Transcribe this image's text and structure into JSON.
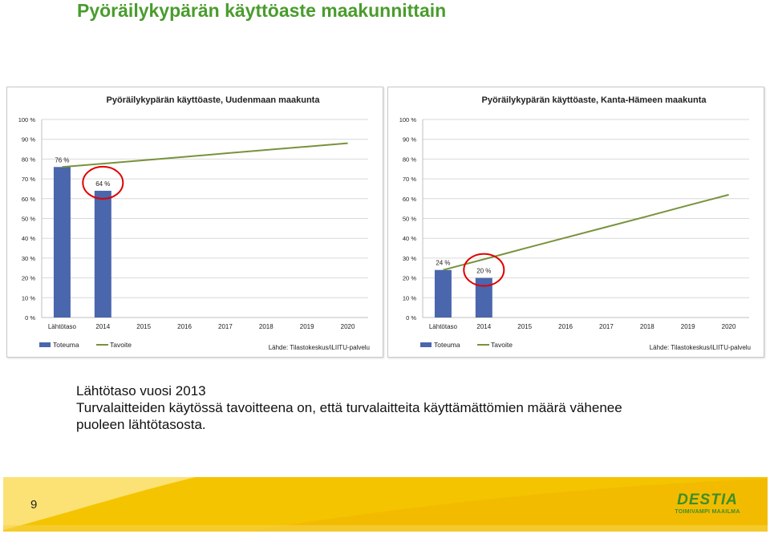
{
  "slide": {
    "title": "Pyöräilykypärän käyttöaste maakunnittain",
    "body_lines": [
      "Lähtötaso vuosi 2013",
      "Turvalaitteiden käytössä tavoitteena on, että turvalaitteita käyttämättömien määrä vähenee",
      "puoleen lähtötasosta."
    ],
    "page_number": "9",
    "logo": {
      "word": "DESTIA",
      "tagline": "TOIMIVAMPI MAAILMA"
    }
  },
  "colors": {
    "title_green": "#4a9c2d",
    "bar_blue": "#4a66ac",
    "target_line_green": "#77933c",
    "circle_red": "#e00000",
    "footer_yellow": "#f5c400"
  },
  "chart_data": [
    {
      "id": "left",
      "type": "bar",
      "title": "Pyöräilykypärän käyttöaste, Uudenmaan maakunta",
      "categories": [
        "Lähtötaso",
        "2014",
        "2015",
        "2016",
        "2017",
        "2018",
        "2019",
        "2020"
      ],
      "yticks": [
        "0 %",
        "10 %",
        "20 %",
        "30 %",
        "40 %",
        "50 %",
        "60 %",
        "70 %",
        "80 %",
        "90 %",
        "100 %"
      ],
      "ylim": [
        0,
        100
      ],
      "grid": true,
      "legend_position": "bottom-left",
      "series": [
        {
          "name": "Toteuma",
          "kind": "bar",
          "values": [
            76,
            64,
            null,
            null,
            null,
            null,
            null,
            null
          ],
          "labels": [
            "76 %",
            "64 %"
          ]
        },
        {
          "name": "Tavoite",
          "kind": "line",
          "values": [
            76,
            77.7,
            79.4,
            81.1,
            82.9,
            84.6,
            86.3,
            88
          ]
        }
      ],
      "highlight_index": 1,
      "source": "Lähde: Tilastokeskus/iLIITU-palvelu"
    },
    {
      "id": "right",
      "type": "bar",
      "title": "Pyöräilykypärän käyttöaste, Kanta-Hämeen maakunta",
      "categories": [
        "Lähtötaso",
        "2014",
        "2015",
        "2016",
        "2017",
        "2018",
        "2019",
        "2020"
      ],
      "yticks": [
        "0 %",
        "10 %",
        "20 %",
        "30 %",
        "40 %",
        "50 %",
        "60 %",
        "70 %",
        "80 %",
        "90 %",
        "100 %"
      ],
      "ylim": [
        0,
        100
      ],
      "grid": true,
      "legend_position": "bottom-left",
      "series": [
        {
          "name": "Toteuma",
          "kind": "bar",
          "values": [
            24,
            20,
            null,
            null,
            null,
            null,
            null,
            null
          ],
          "labels": [
            "24 %",
            "20 %"
          ]
        },
        {
          "name": "Tavoite",
          "kind": "line",
          "values": [
            24,
            29.4,
            34.9,
            40.3,
            45.7,
            51.1,
            56.6,
            62
          ]
        }
      ],
      "highlight_index": 1,
      "source": "Lähde: Tilastokeskus/iLIITU-palvelu"
    }
  ]
}
